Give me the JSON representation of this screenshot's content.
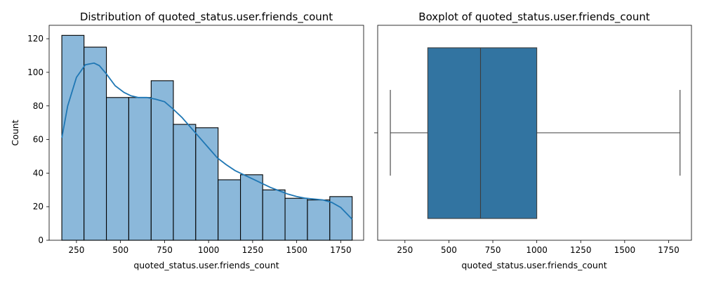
{
  "chart_data": [
    {
      "type": "histogram",
      "title": "Distribution of quoted_status.user.friends_count",
      "xlabel": "quoted_status.user.friends_count",
      "ylabel": "Count",
      "xlim": [
        95,
        1880
      ],
      "ylim": [
        0,
        128
      ],
      "xticks": [
        250,
        500,
        750,
        1000,
        1250,
        1500,
        1750
      ],
      "yticks": [
        0,
        20,
        40,
        60,
        80,
        100,
        120
      ],
      "bin_edges": [
        167,
        293,
        420,
        547,
        674,
        800,
        927,
        1054,
        1181,
        1307,
        1434,
        1561,
        1688,
        1815
      ],
      "values": [
        122,
        115,
        85,
        85,
        95,
        69,
        67,
        36,
        39,
        30,
        25,
        24,
        26
      ],
      "bar_color": "#8bb8da",
      "kde": {
        "color": "#1f77b4",
        "x": [
          167,
          200,
          250,
          300,
          350,
          380,
          420,
          470,
          520,
          560,
          600,
          650,
          700,
          750,
          800,
          850,
          900,
          950,
          1000,
          1050,
          1100,
          1150,
          1200,
          1250,
          1300,
          1350,
          1400,
          1450,
          1500,
          1550,
          1600,
          1650,
          1700,
          1750,
          1815
        ],
        "y": [
          61,
          80,
          97,
          104.5,
          105.5,
          104,
          99,
          92,
          88,
          86,
          85,
          85,
          84,
          82.5,
          78,
          73,
          67,
          61,
          55,
          49,
          45,
          41.5,
          39,
          36.5,
          34,
          31.5,
          29.5,
          27.5,
          26,
          25,
          24.5,
          24,
          22.5,
          19.5,
          12.5
        ]
      }
    },
    {
      "type": "boxplot",
      "title": "Boxplot of quoted_status.user.friends_count",
      "xlabel": "quoted_status.user.friends_count",
      "xlim": [
        95,
        1880
      ],
      "xticks": [
        250,
        500,
        750,
        1000,
        1250,
        1500,
        1750
      ],
      "whisker_low": 167,
      "q1": 380,
      "median": 680,
      "q3": 1000,
      "whisker_high": 1815,
      "box_color": "#3274a1"
    }
  ]
}
